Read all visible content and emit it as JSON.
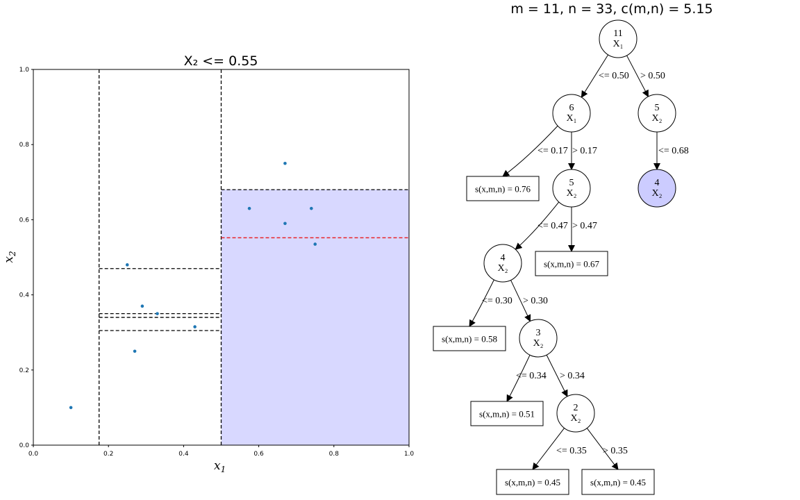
{
  "left_plot": {
    "title": "X₂ <= 0.55",
    "xlabel": "x",
    "xlabel_sub": "1",
    "ylabel": "x",
    "ylabel_sub": "2",
    "x_ticks": [
      "0.0",
      "0.2",
      "0.4",
      "0.6",
      "0.8",
      "1.0"
    ],
    "y_ticks": [
      "0.0",
      "0.2",
      "0.4",
      "0.6",
      "0.8",
      "1.0"
    ],
    "colors": {
      "points": "#1f77b4",
      "region": "#d8d8ff",
      "split": "#e8242a",
      "partition": "#000000"
    }
  },
  "chart_data": {
    "type": "scatter",
    "title": "X₂ <= 0.55",
    "xlabel": "x1",
    "ylabel": "x2",
    "xlim": [
      0,
      1
    ],
    "ylim": [
      0,
      1
    ],
    "grid": false,
    "points": [
      {
        "x": 0.1,
        "y": 0.1
      },
      {
        "x": 0.25,
        "y": 0.48
      },
      {
        "x": 0.27,
        "y": 0.25
      },
      {
        "x": 0.29,
        "y": 0.37
      },
      {
        "x": 0.33,
        "y": 0.35
      },
      {
        "x": 0.43,
        "y": 0.315
      },
      {
        "x": 0.575,
        "y": 0.63
      },
      {
        "x": 0.67,
        "y": 0.75
      },
      {
        "x": 0.67,
        "y": 0.59
      },
      {
        "x": 0.74,
        "y": 0.63
      },
      {
        "x": 0.75,
        "y": 0.535
      }
    ],
    "vertical_splits": [
      {
        "x": 0.175,
        "y0": 0,
        "y1": 1
      },
      {
        "x": 0.5,
        "y0": 0,
        "y1": 1
      }
    ],
    "horizontal_splits": [
      {
        "y": 0.68,
        "x0": 0.5,
        "x1": 1.0
      },
      {
        "y": 0.47,
        "x0": 0.175,
        "x1": 0.5
      },
      {
        "y": 0.35,
        "x0": 0.175,
        "x1": 0.5
      },
      {
        "y": 0.34,
        "x0": 0.175,
        "x1": 0.5
      },
      {
        "y": 0.305,
        "x0": 0.175,
        "x1": 0.5
      }
    ],
    "candidate_split": {
      "y": 0.552,
      "x0": 0.5,
      "x1": 1.0
    },
    "highlight_region": {
      "x0": 0.5,
      "x1": 1.0,
      "y0": 0.0,
      "y1": 0.68
    }
  },
  "tree": {
    "title": "m = 11, n = 33, c(m,n) = 5.15",
    "nodes": [
      {
        "count": "11",
        "var": "X₁"
      },
      {
        "count": "6",
        "var": "X₁"
      },
      {
        "count": "5",
        "var": "X₂"
      },
      {
        "count": "5",
        "var": "X₂"
      },
      {
        "count": "4",
        "var": "X₂"
      },
      {
        "count": "4",
        "var": "X₂"
      },
      {
        "count": "3",
        "var": "X₂"
      },
      {
        "count": "2",
        "var": "X₂"
      }
    ],
    "leaves": [
      "s(x,m,n) = 0.76",
      "s(x,m,n) = 0.67",
      "s(x,m,n) = 0.58",
      "s(x,m,n) = 0.51",
      "s(x,m,n) = 0.45",
      "s(x,m,n) = 0.45"
    ],
    "edge_labels": [
      "<= 0.50",
      "> 0.50",
      "<= 0.17",
      "> 0.17",
      "<= 0.68",
      "<= 0.47",
      "> 0.47",
      "<= 0.30",
      "> 0.30",
      "<= 0.34",
      "> 0.34",
      "<= 0.35",
      "> 0.35"
    ],
    "colors": {
      "highlight_node": "#ccccff"
    }
  }
}
